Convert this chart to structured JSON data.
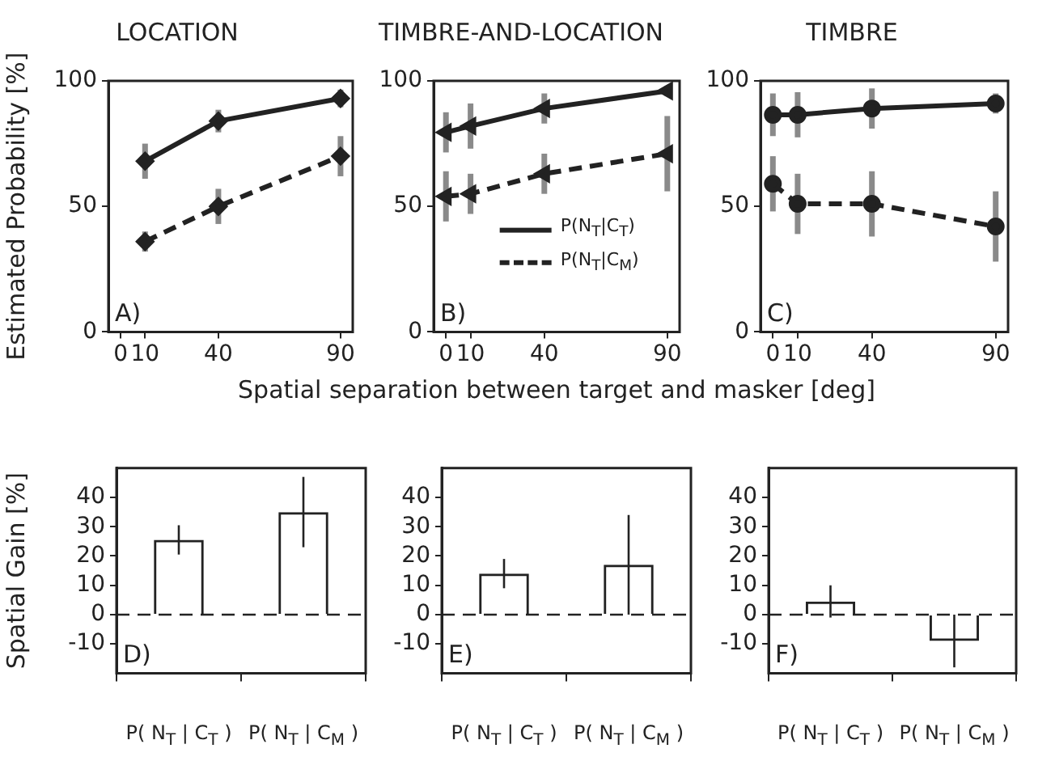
{
  "chart_data": [
    {
      "type": "line",
      "title": "LOCATION",
      "ylabel": "Estimated Probability [%]",
      "xlim": [
        -5,
        95
      ],
      "xticks": [
        0,
        10,
        40,
        90
      ],
      "ylim": [
        0,
        100
      ],
      "yticks": [
        0,
        50,
        100
      ],
      "grid": false,
      "marker": "diamond",
      "annotations": [
        "A)"
      ],
      "series": [
        {
          "color": "#222222",
          "line_style": "solid",
          "x": [
            10,
            40,
            90
          ],
          "values": [
            68,
            84,
            93
          ],
          "errors": [
            7,
            4.5,
            3.5
          ]
        },
        {
          "color": "#222222",
          "line_style": "dashed",
          "x": [
            10,
            40,
            90
          ],
          "values": [
            36,
            50,
            70
          ],
          "errors": [
            4,
            7,
            8
          ]
        }
      ]
    },
    {
      "type": "line",
      "title": "TIMBRE-AND-LOCATION",
      "xlabel": "Spatial separation between target and masker [deg]",
      "xlim": [
        -5,
        95
      ],
      "xticks": [
        0,
        10,
        40,
        90
      ],
      "ylim": [
        0,
        100
      ],
      "yticks": [
        0,
        50,
        100
      ],
      "grid": false,
      "marker": "triangle",
      "legend": "center",
      "annotations": [
        "B)"
      ],
      "series": [
        {
          "name": "P(N$_{T}$|C$_{T}$)",
          "color": "#222222",
          "line_style": "solid",
          "x": [
            0,
            10,
            40,
            90
          ],
          "values": [
            79.5,
            82,
            89,
            96
          ],
          "errors": [
            8,
            9,
            6,
            2
          ]
        },
        {
          "name": "P(N$_{T}$|C$_{M}$)",
          "color": "#222222",
          "line_style": "dashed",
          "x": [
            0,
            10,
            40,
            90
          ],
          "values": [
            54,
            55,
            63,
            71
          ],
          "errors": [
            10,
            8,
            8,
            15
          ]
        }
      ]
    },
    {
      "type": "line",
      "title": "TIMBRE",
      "xlim": [
        -5,
        95
      ],
      "xticks": [
        0,
        10,
        40,
        90
      ],
      "ylim": [
        0,
        100
      ],
      "yticks": [
        0,
        50,
        100
      ],
      "grid": false,
      "marker": "circle",
      "annotations": [
        "C)"
      ],
      "series": [
        {
          "color": "#222222",
          "line_style": "solid",
          "x": [
            0,
            10,
            40,
            90
          ],
          "values": [
            86.5,
            86.5,
            89,
            91
          ],
          "errors": [
            8.5,
            9,
            8,
            4
          ]
        },
        {
          "color": "#222222",
          "line_style": "dashed",
          "x": [
            0,
            10,
            40,
            90
          ],
          "values": [
            59,
            51,
            51,
            42
          ],
          "errors": [
            11,
            12,
            13,
            14
          ]
        }
      ]
    },
    {
      "type": "bar",
      "ylabel": "Spatial Gain [%]",
      "categories": [
        "P( N$_{T}$ | C$_{T}$ )",
        "P( N$_{T}$ | C$_{M}$ )"
      ],
      "values": [
        25.5,
        35
      ],
      "errors": [
        5,
        12
      ],
      "color": "#222222",
      "ylim": [
        -20,
        50
      ],
      "yticks": [
        -10,
        0,
        10,
        20,
        30,
        40
      ],
      "grid": false,
      "annotations": [
        "D)"
      ],
      "ref_lines": [
        {
          "axis": "y",
          "value": 0,
          "line_style": "dashed"
        }
      ]
    },
    {
      "type": "bar",
      "categories": [
        "P( N$_{T}$ | C$_{T}$ )",
        "P( N$_{T}$ | C$_{M}$ )"
      ],
      "values": [
        14,
        17
      ],
      "errors": [
        5,
        17
      ],
      "color": "#222222",
      "ylim": [
        -20,
        50
      ],
      "yticks": [
        -10,
        0,
        10,
        20,
        30,
        40
      ],
      "grid": false,
      "annotations": [
        "E)"
      ],
      "ref_lines": [
        {
          "axis": "y",
          "value": 0,
          "line_style": "dashed"
        }
      ]
    },
    {
      "type": "bar",
      "categories": [
        "P( N$_{T}$ | C$_{T}$ )",
        "P( N$_{T}$ | C$_{M}$ )"
      ],
      "values": [
        4.5,
        -9
      ],
      "errors": [
        5.5,
        9
      ],
      "color": "#222222",
      "ylim": [
        -20,
        50
      ],
      "yticks": [
        -10,
        0,
        10,
        20,
        30,
        40
      ],
      "grid": false,
      "annotations": [
        "F)"
      ],
      "ref_lines": [
        {
          "axis": "y",
          "value": 0,
          "line_style": "dashed"
        }
      ]
    }
  ]
}
